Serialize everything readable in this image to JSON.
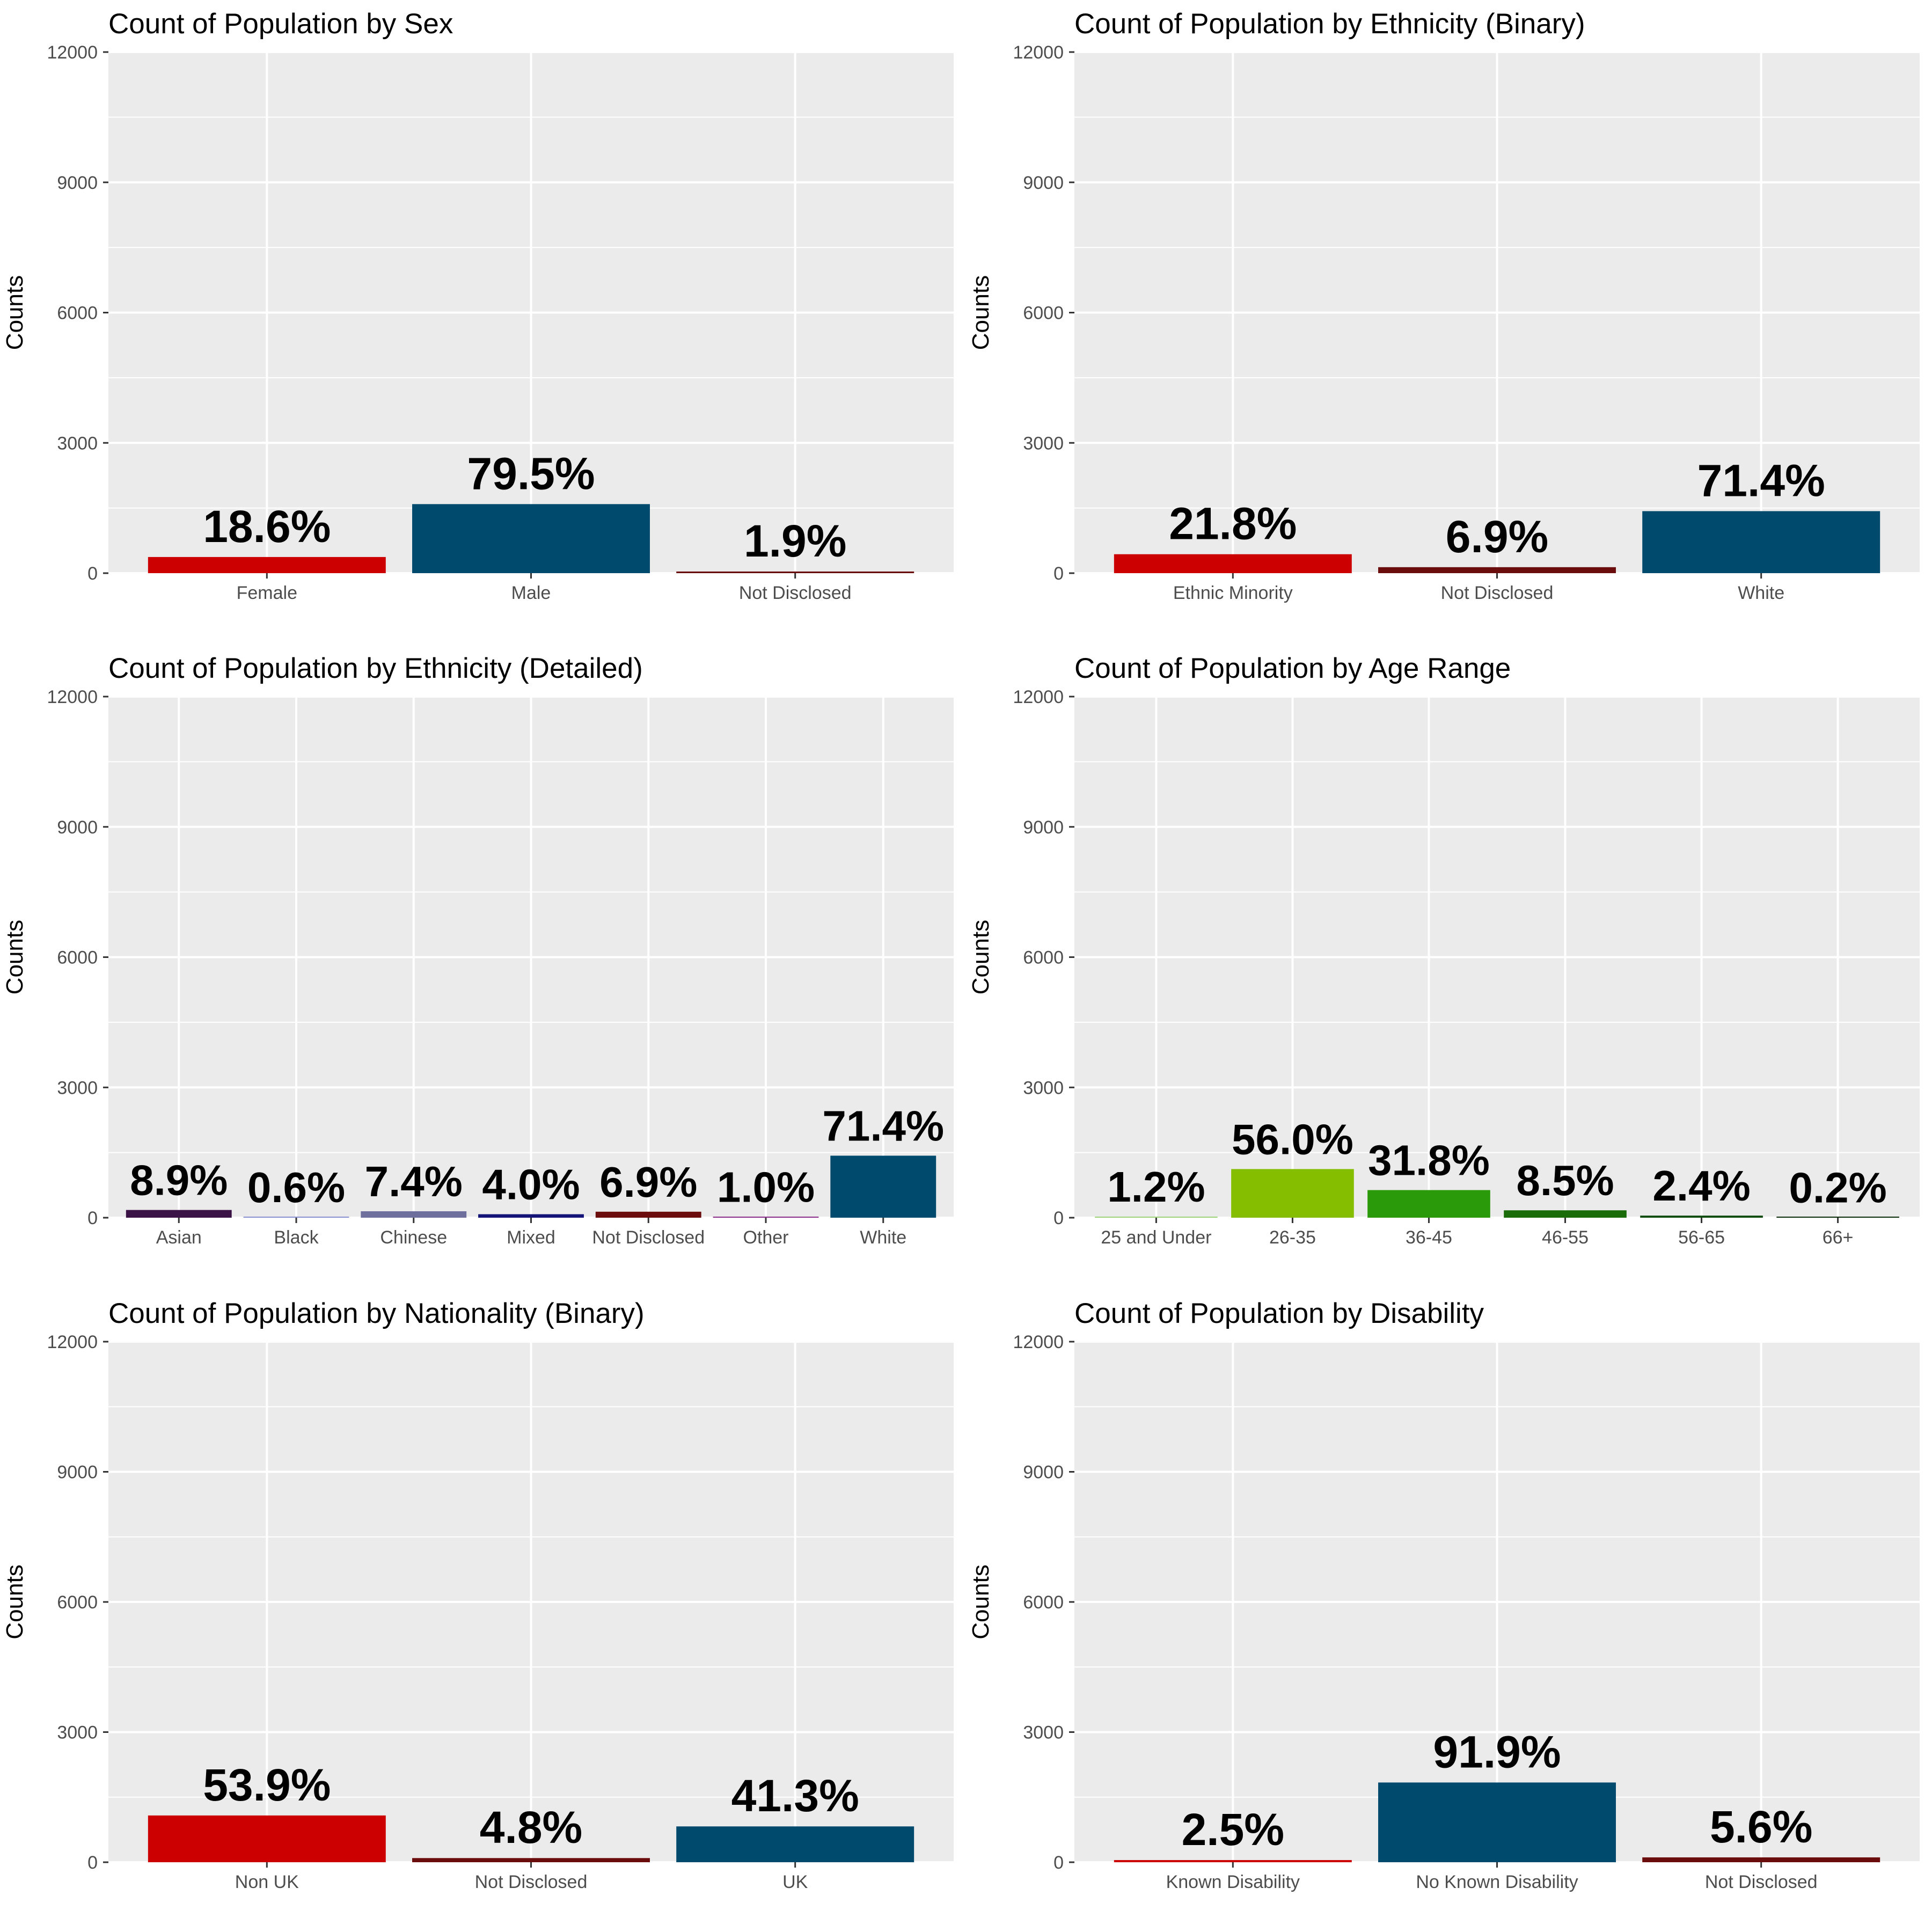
{
  "chart_data": [
    {
      "type": "bar",
      "title": "Count of Population by Sex",
      "ylabel": "Counts",
      "xlabel": "",
      "ylim": [
        0,
        12000
      ],
      "yticks": [
        "0",
        "3000",
        "6000",
        "9000",
        "12000"
      ],
      "grid": true,
      "categories": [
        "Female",
        "Male",
        "Not Disclosed"
      ],
      "values": [
        372,
        1590,
        38
      ],
      "labels": [
        "18.6%",
        "79.5%",
        "1.9%"
      ],
      "colors": [
        "#cc0000",
        "#004a6e",
        "#6b0d0d"
      ]
    },
    {
      "type": "bar",
      "title": "Count of Population by Ethnicity (Binary)",
      "ylabel": "Counts",
      "xlabel": "",
      "ylim": [
        0,
        12000
      ],
      "yticks": [
        "0",
        "3000",
        "6000",
        "9000",
        "12000"
      ],
      "grid": true,
      "categories": [
        "Ethnic Minority",
        "Not Disclosed",
        "White"
      ],
      "values": [
        436,
        138,
        1428
      ],
      "labels": [
        "21.8%",
        "6.9%",
        "71.4%"
      ],
      "colors": [
        "#cc0000",
        "#6b0d0d",
        "#004a6e"
      ]
    },
    {
      "type": "bar",
      "title": "Count of Population by Ethnicity (Detailed)",
      "ylabel": "Counts",
      "xlabel": "",
      "ylim": [
        0,
        12000
      ],
      "yticks": [
        "0",
        "3000",
        "6000",
        "9000",
        "12000"
      ],
      "grid": true,
      "categories": [
        "Asian",
        "Black",
        "Chinese",
        "Mixed",
        "Not Disclosed",
        "Other",
        "White"
      ],
      "values": [
        178,
        12,
        148,
        80,
        138,
        20,
        1428
      ],
      "labels": [
        "8.9%",
        "0.6%",
        "7.4%",
        "4.0%",
        "6.9%",
        "1.0%",
        "71.4%"
      ],
      "colors": [
        "#3b1245",
        "#8a8fd0",
        "#6f6f9e",
        "#141478",
        "#6b0d0d",
        "#8a2e8a",
        "#004a6e"
      ]
    },
    {
      "type": "bar",
      "title": "Count of Population by Age Range",
      "ylabel": "Counts",
      "xlabel": "",
      "ylim": [
        0,
        12000
      ],
      "yticks": [
        "0",
        "3000",
        "6000",
        "9000",
        "12000"
      ],
      "grid": true,
      "categories": [
        "25 and Under",
        "26-35",
        "36-45",
        "46-55",
        "56-65",
        "66+"
      ],
      "values": [
        24,
        1120,
        636,
        170,
        48,
        4
      ],
      "labels": [
        "1.2%",
        "56.0%",
        "31.8%",
        "8.5%",
        "2.4%",
        "0.2%"
      ],
      "colors": [
        "#9fd37a",
        "#85bd00",
        "#2a9a0a",
        "#1a6b0a",
        "#0d4a0d",
        "#0a2e0a"
      ]
    },
    {
      "type": "bar",
      "title": "Count of Population by Nationality (Binary)",
      "ylabel": "Counts",
      "xlabel": "",
      "ylim": [
        0,
        12000
      ],
      "yticks": [
        "0",
        "3000",
        "6000",
        "9000",
        "12000"
      ],
      "grid": true,
      "categories": [
        "Non UK",
        "Not Disclosed",
        "UK"
      ],
      "values": [
        1078,
        96,
        826
      ],
      "labels": [
        "53.9%",
        "4.8%",
        "41.3%"
      ],
      "colors": [
        "#cc0000",
        "#6b0d0d",
        "#004a6e"
      ]
    },
    {
      "type": "bar",
      "title": "Count of Population by Disability",
      "ylabel": "Counts",
      "xlabel": "",
      "ylim": [
        0,
        12000
      ],
      "yticks": [
        "0",
        "3000",
        "6000",
        "9000",
        "12000"
      ],
      "grid": true,
      "categories": [
        "Known Disability",
        "No Known Disability",
        "Not Disclosed"
      ],
      "values": [
        50,
        1838,
        112
      ],
      "labels": [
        "2.5%",
        "91.9%",
        "5.6%"
      ],
      "colors": [
        "#cc0000",
        "#004a6e",
        "#6b0d0d"
      ]
    }
  ]
}
